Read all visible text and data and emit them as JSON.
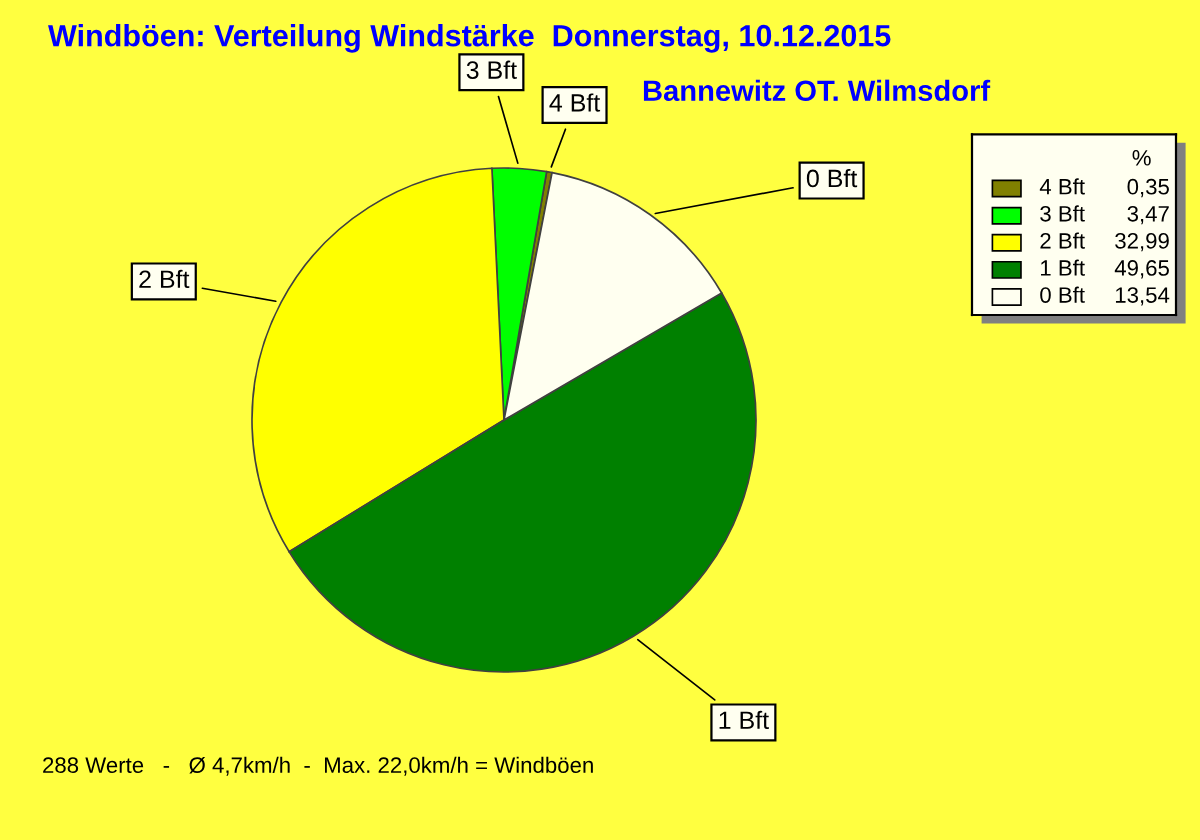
{
  "chart_data": {
    "type": "pie",
    "title": "Windböen: Verteilung Windstärke  Donnerstag, 10.12.2015",
    "subtitle": "Bannewitz OT. Wilmsdorf",
    "categories": [
      "4 Bft",
      "3 Bft",
      "2 Bft",
      "1 Bft",
      "0 Bft"
    ],
    "values": [
      0.35,
      3.47,
      32.99,
      49.65,
      13.54
    ],
    "value_labels": [
      "0,35",
      "3,47",
      "32,99",
      "49,65",
      "13,54"
    ],
    "colors": [
      "#808000",
      "#00ff00",
      "#ffff00",
      "#008000",
      "#fffff0"
    ],
    "legend": "top right",
    "legend_title": "%",
    "annotations": [
      "288 Werte   -   Ø 4,7km/h  -  Max. 22,0km/h = Windböen"
    ]
  }
}
